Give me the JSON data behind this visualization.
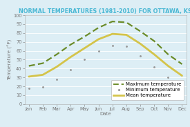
{
  "title": "NORMAL TEMPERATURES (1981-2010) FOR OTTAWA, KS",
  "xlabel": "Date",
  "ylabel": "Temperature (°F)",
  "months": [
    "Jan",
    "Feb",
    "Mar",
    "Apr",
    "May",
    "Jun",
    "Jul",
    "Aug",
    "Sep",
    "Oct",
    "Nov",
    "Dec"
  ],
  "max_temp": [
    43,
    46,
    56,
    67,
    76,
    86,
    93,
    92,
    82,
    71,
    56,
    45
  ],
  "min_temp": [
    18,
    19,
    28,
    39,
    50,
    60,
    66,
    65,
    54,
    42,
    30,
    20
  ],
  "mean_temp": [
    31,
    33,
    42,
    53,
    63,
    73,
    79,
    78,
    68,
    56,
    43,
    32
  ],
  "ylim": [
    0,
    100
  ],
  "yticks": [
    0,
    10,
    20,
    30,
    40,
    50,
    60,
    70,
    80,
    90,
    100
  ],
  "max_color": "#6b8c2a",
  "min_color": "#999999",
  "mean_color": "#d4c44a",
  "bg_color": "#ddeef5",
  "plot_bg_color": "#ddeef5",
  "title_color": "#4ab8d4",
  "axis_label_color": "#777777",
  "tick_color": "#777777",
  "grid_color": "#ffffff",
  "legend_fontsize": 5.0,
  "title_fontsize": 5.8,
  "axis_fontsize": 5.0,
  "tick_fontsize": 4.8
}
